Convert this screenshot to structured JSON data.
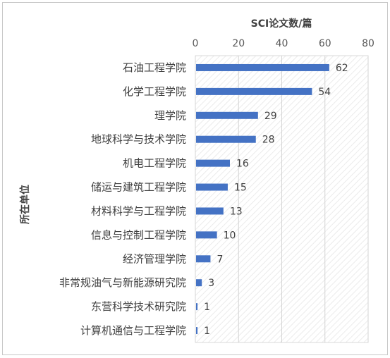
{
  "chart_data": {
    "type": "bar",
    "orientation": "horizontal",
    "xlabel": "SCI论文数/篇",
    "ylabel": "所在单位",
    "xlim": [
      0,
      80
    ],
    "xticks": [
      "0",
      "20",
      "40",
      "60",
      "80"
    ],
    "grid": true,
    "legend": "none",
    "bar_color": "#4472c4",
    "categories": [
      "石油工程学院",
      "化学工程学院",
      "理学院",
      "地球科学与技术学院",
      "机电工程学院",
      "储运与建筑工程学院",
      "材料科学与工程学院",
      "信息与控制工程学院",
      "经济管理学院",
      "非常规油气与新能源研究院",
      "东营科学技术研究院",
      "计算机通信与工程学院"
    ],
    "values": [
      62,
      54,
      29,
      28,
      16,
      15,
      13,
      10,
      7,
      3,
      1,
      1
    ]
  }
}
